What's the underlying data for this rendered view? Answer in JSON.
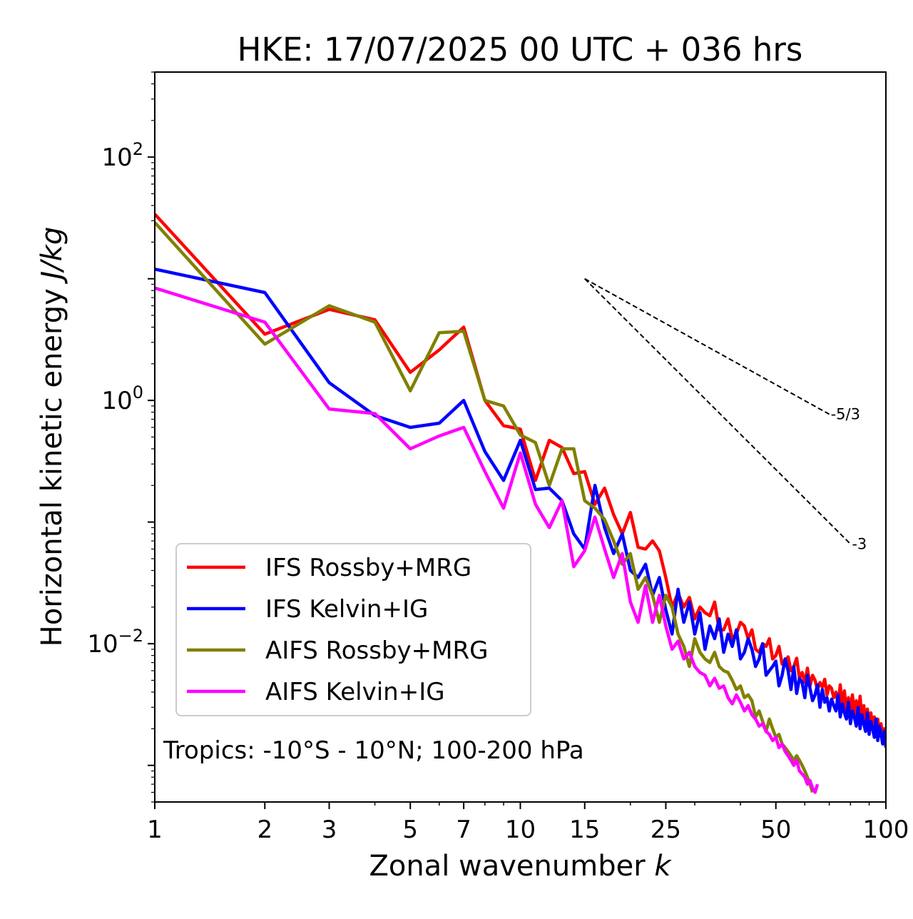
{
  "chart_data": {
    "type": "line",
    "title": "HKE: 17/07/2025 00 UTC + 036 hrs",
    "xlabel": "Zonal wavenumber",
    "xlabel_symbol": "k",
    "ylabel": "Horizontal kinetic energy",
    "ylabel_unit": "J/kg",
    "x_scale": "log",
    "y_scale": "log",
    "xlim": [
      1,
      100
    ],
    "ylim": [
      0.0005,
      500
    ],
    "x_ticks": [
      1,
      2,
      3,
      5,
      7,
      10,
      15,
      25,
      50,
      100
    ],
    "x_tick_labels": [
      "1",
      "2",
      "3",
      "5",
      "7",
      "10",
      "15",
      "25",
      "50",
      "100"
    ],
    "y_ticks": [
      0.01,
      1,
      100
    ],
    "y_tick_bases": [
      "10",
      "10",
      "10"
    ],
    "y_tick_exponents": [
      "−2",
      "0",
      "2"
    ],
    "grid": false,
    "legend_position": "lower-left",
    "annotation": "Tropics: -10°S - 10°N; 100-200 hPa",
    "reference_slopes": [
      {
        "label": "-5/3",
        "x0": 15,
        "y0": 10,
        "x1": 70,
        "y1": 0.77
      },
      {
        "label": "-3",
        "x0": 15,
        "y0": 10,
        "x1": 80,
        "y1": 0.066
      }
    ],
    "series": [
      {
        "name": "IFS Rossby+MRG",
        "color": "#ff0000",
        "x": [
          1,
          2,
          3,
          4,
          5,
          6,
          7,
          8,
          9,
          10,
          11,
          12,
          13,
          14,
          15,
          16,
          17,
          18,
          19,
          20,
          21,
          22,
          23,
          24,
          25,
          26,
          27,
          28,
          29,
          30,
          31,
          32,
          33,
          34,
          35,
          36,
          37,
          38,
          39,
          40,
          41,
          42,
          43,
          44,
          45,
          46,
          47,
          48,
          49,
          50,
          51,
          52,
          53,
          54,
          55,
          56,
          57,
          58,
          59,
          60,
          61,
          62,
          63,
          64,
          65,
          66,
          67,
          68,
          69,
          70,
          71,
          72,
          73,
          74,
          75,
          76,
          77,
          78,
          79,
          80,
          81,
          82,
          83,
          84,
          85,
          86,
          87,
          88,
          89,
          90,
          91,
          92,
          93,
          94,
          95,
          96,
          97,
          98,
          99,
          100
        ],
        "y": [
          34,
          3.5,
          5.6,
          4.6,
          1.7,
          2.6,
          4,
          1,
          0.62,
          0.58,
          0.22,
          0.47,
          0.41,
          0.25,
          0.26,
          0.14,
          0.19,
          0.115,
          0.08,
          0.12,
          0.062,
          0.06,
          0.07,
          0.058,
          0.035,
          0.02,
          0.026,
          0.02,
          0.024,
          0.016,
          0.02,
          0.018,
          0.017,
          0.022,
          0.013,
          0.013,
          0.016,
          0.011,
          0.012,
          0.015,
          0.014,
          0.011,
          0.013,
          0.009,
          0.0085,
          0.01,
          0.0095,
          0.011,
          0.0075,
          0.008,
          0.0095,
          0.0068,
          0.0072,
          0.0078,
          0.006,
          0.0065,
          0.0076,
          0.0052,
          0.0058,
          0.0048,
          0.0063,
          0.0045,
          0.0055,
          0.005,
          0.0042,
          0.0048,
          0.0044,
          0.0051,
          0.0038,
          0.0045,
          0.0043,
          0.0036,
          0.004,
          0.0032,
          0.0046,
          0.003,
          0.0041,
          0.0028,
          0.0036,
          0.0029,
          0.0038,
          0.0026,
          0.0034,
          0.0025,
          0.0037,
          0.0024,
          0.0031,
          0.0023,
          0.0029,
          0.0021,
          0.0027,
          0.002,
          0.0025,
          0.0019,
          0.0024,
          0.0018,
          0.0022,
          0.0017,
          0.002,
          0.0017
        ]
      },
      {
        "name": "IFS Kelvin+IG",
        "color": "#0000ff",
        "x": [
          1,
          2,
          3,
          4,
          5,
          6,
          7,
          8,
          9,
          10,
          11,
          12,
          13,
          14,
          15,
          16,
          17,
          18,
          19,
          20,
          21,
          22,
          23,
          24,
          25,
          26,
          27,
          28,
          29,
          30,
          31,
          32,
          33,
          34,
          35,
          36,
          37,
          38,
          39,
          40,
          41,
          42,
          43,
          44,
          45,
          46,
          47,
          48,
          49,
          50,
          51,
          52,
          53,
          54,
          55,
          56,
          57,
          58,
          59,
          60,
          61,
          62,
          63,
          64,
          65,
          66,
          67,
          68,
          69,
          70,
          71,
          72,
          73,
          74,
          75,
          76,
          77,
          78,
          79,
          80,
          81,
          82,
          83,
          84,
          85,
          86,
          87,
          88,
          89,
          90,
          91,
          92,
          93,
          94,
          95,
          96,
          97,
          98,
          99,
          100
        ],
        "y": [
          12,
          7.7,
          1.4,
          0.75,
          0.6,
          0.65,
          1,
          0.38,
          0.22,
          0.47,
          0.185,
          0.19,
          0.15,
          0.08,
          0.06,
          0.2,
          0.09,
          0.055,
          0.08,
          0.04,
          0.035,
          0.045,
          0.025,
          0.035,
          0.019,
          0.012,
          0.028,
          0.015,
          0.022,
          0.012,
          0.018,
          0.009,
          0.014,
          0.011,
          0.016,
          0.0085,
          0.012,
          0.0095,
          0.013,
          0.0075,
          0.0085,
          0.011,
          0.009,
          0.0065,
          0.0075,
          0.01,
          0.0055,
          0.006,
          0.0065,
          0.0072,
          0.0045,
          0.0055,
          0.0075,
          0.006,
          0.0042,
          0.0065,
          0.0039,
          0.0052,
          0.0048,
          0.0036,
          0.0055,
          0.0043,
          0.0034,
          0.0038,
          0.0046,
          0.003,
          0.0042,
          0.0033,
          0.0036,
          0.0028,
          0.0035,
          0.0031,
          0.0028,
          0.0038,
          0.0025,
          0.0032,
          0.0027,
          0.0024,
          0.0033,
          0.0022,
          0.0028,
          0.0025,
          0.0021,
          0.003,
          0.002,
          0.0026,
          0.0022,
          0.0019,
          0.0027,
          0.0018,
          0.0023,
          0.002,
          0.0017,
          0.0024,
          0.0016,
          0.0021,
          0.0018,
          0.0015,
          0.0019,
          0.0014
        ]
      },
      {
        "name": "AIFS Rossby+MRG",
        "color": "#808000",
        "x": [
          1,
          2,
          3,
          4,
          5,
          6,
          7,
          8,
          9,
          10,
          11,
          12,
          13,
          14,
          15,
          16,
          17,
          18,
          19,
          20,
          21,
          22,
          23,
          24,
          25,
          26,
          27,
          28,
          29,
          30,
          31,
          32,
          33,
          34,
          35,
          36,
          37,
          38,
          39,
          40,
          41,
          42,
          43,
          44,
          45,
          46,
          47,
          48,
          49,
          50,
          51,
          52,
          53,
          54,
          55,
          56,
          57,
          58,
          59,
          60,
          61,
          62,
          63
        ],
        "y": [
          29,
          2.9,
          6,
          4.4,
          1.2,
          3.6,
          3.7,
          1,
          0.9,
          0.52,
          0.45,
          0.2,
          0.4,
          0.4,
          0.15,
          0.13,
          0.105,
          0.07,
          0.045,
          0.055,
          0.028,
          0.035,
          0.025,
          0.015,
          0.025,
          0.02,
          0.012,
          0.0095,
          0.0065,
          0.011,
          0.0085,
          0.0075,
          0.007,
          0.0085,
          0.0065,
          0.006,
          0.0058,
          0.005,
          0.0042,
          0.0045,
          0.0036,
          0.0038,
          0.0034,
          0.0025,
          0.0028,
          0.0023,
          0.0019,
          0.0024,
          0.002,
          0.0017,
          0.0018,
          0.0015,
          0.0014,
          0.0013,
          0.0012,
          0.0011,
          0.0012,
          0.0011,
          0.001,
          0.0009,
          0.0008,
          0.0007,
          0.0006
        ]
      },
      {
        "name": "AIFS Kelvin+IG",
        "color": "#ff00ff",
        "x": [
          1,
          2,
          3,
          4,
          5,
          6,
          7,
          8,
          9,
          10,
          11,
          12,
          13,
          14,
          15,
          16,
          17,
          18,
          19,
          20,
          21,
          22,
          23,
          24,
          25,
          26,
          27,
          28,
          29,
          30,
          31,
          32,
          33,
          34,
          35,
          36,
          37,
          38,
          39,
          40,
          41,
          42,
          43,
          44,
          45,
          46,
          47,
          48,
          49,
          50,
          51,
          52,
          53,
          54,
          55,
          56,
          57,
          58,
          59,
          60,
          61,
          62,
          63,
          64,
          65
        ],
        "y": [
          8.4,
          4.4,
          0.85,
          0.78,
          0.4,
          0.51,
          0.6,
          0.26,
          0.13,
          0.37,
          0.14,
          0.09,
          0.15,
          0.043,
          0.058,
          0.11,
          0.06,
          0.035,
          0.055,
          0.022,
          0.015,
          0.03,
          0.015,
          0.025,
          0.014,
          0.009,
          0.0105,
          0.0075,
          0.0085,
          0.0065,
          0.0058,
          0.0055,
          0.0045,
          0.0052,
          0.0043,
          0.0045,
          0.0036,
          0.0032,
          0.0038,
          0.0033,
          0.0028,
          0.0031,
          0.0026,
          0.0024,
          0.0021,
          0.0022,
          0.0019,
          0.0018,
          0.0016,
          0.0017,
          0.0014,
          0.0015,
          0.0013,
          0.0012,
          0.0011,
          0.001,
          0.0011,
          0.0009,
          0.00085,
          0.0008,
          0.0007,
          0.00075,
          0.00065,
          0.0006,
          0.0007
        ]
      }
    ]
  }
}
